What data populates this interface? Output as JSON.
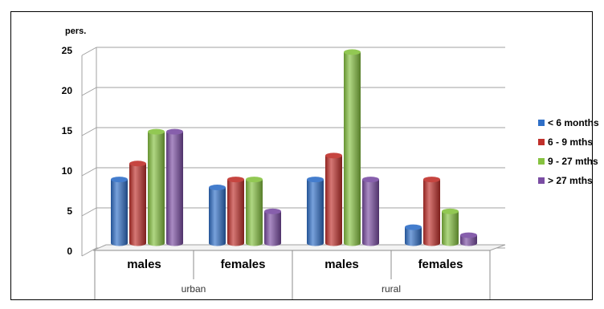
{
  "chart_data": {
    "type": "bar",
    "ylabel": "pers.",
    "ylim": [
      0,
      25
    ],
    "yticks": [
      0,
      5,
      10,
      15,
      20,
      25
    ],
    "groups": [
      {
        "label": "urban",
        "categories": [
          "males",
          "females"
        ]
      },
      {
        "label": "rural",
        "categories": [
          "males",
          "females"
        ]
      }
    ],
    "categories": [
      "males",
      "females",
      "males",
      "females"
    ],
    "series": [
      {
        "name": "< 6 months",
        "color": "#2f6fc7",
        "values": [
          8,
          7,
          8,
          2
        ]
      },
      {
        "name": "6 - 9  mths",
        "color": "#c0302b",
        "values": [
          10,
          8,
          11,
          8
        ]
      },
      {
        "name": "9 - 27 mths",
        "color": "#86c240",
        "values": [
          14,
          8,
          24,
          4
        ]
      },
      {
        "name": "> 27 mths",
        "color": "#7a4da3",
        "values": [
          14,
          4,
          8,
          1
        ]
      }
    ],
    "grid": true,
    "legend_position": "right"
  }
}
